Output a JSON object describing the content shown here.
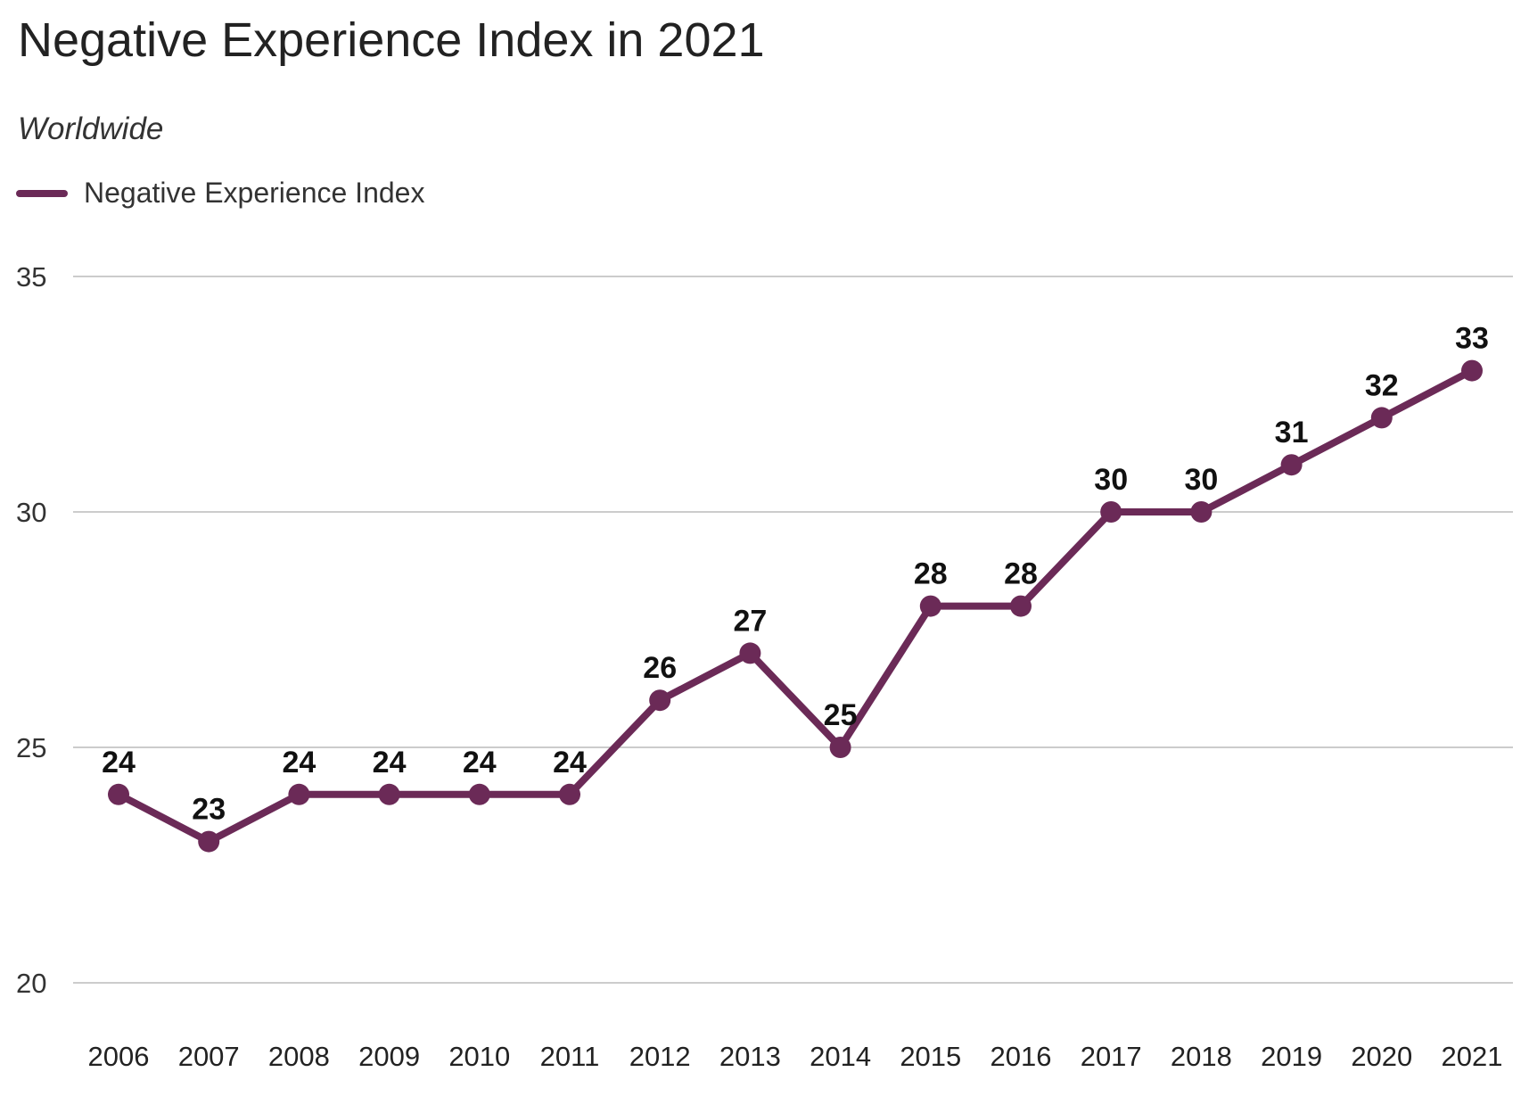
{
  "chart_data": {
    "type": "line",
    "title": "Negative Experience Index in 2021",
    "subtitle": "Worldwide",
    "x": [
      2006,
      2007,
      2008,
      2009,
      2010,
      2011,
      2012,
      2013,
      2014,
      2015,
      2016,
      2017,
      2018,
      2019,
      2020,
      2021
    ],
    "series": [
      {
        "name": "Negative Experience Index",
        "values": [
          24,
          23,
          24,
          24,
          24,
          24,
          26,
          27,
          25,
          28,
          28,
          30,
          30,
          31,
          32,
          33
        ],
        "color": "#6b2a57"
      }
    ],
    "yticks": [
      20,
      25,
      30,
      35
    ],
    "ylim": [
      20,
      35
    ],
    "grid": "horizontal",
    "legend": "top-left",
    "data_labels": true
  }
}
